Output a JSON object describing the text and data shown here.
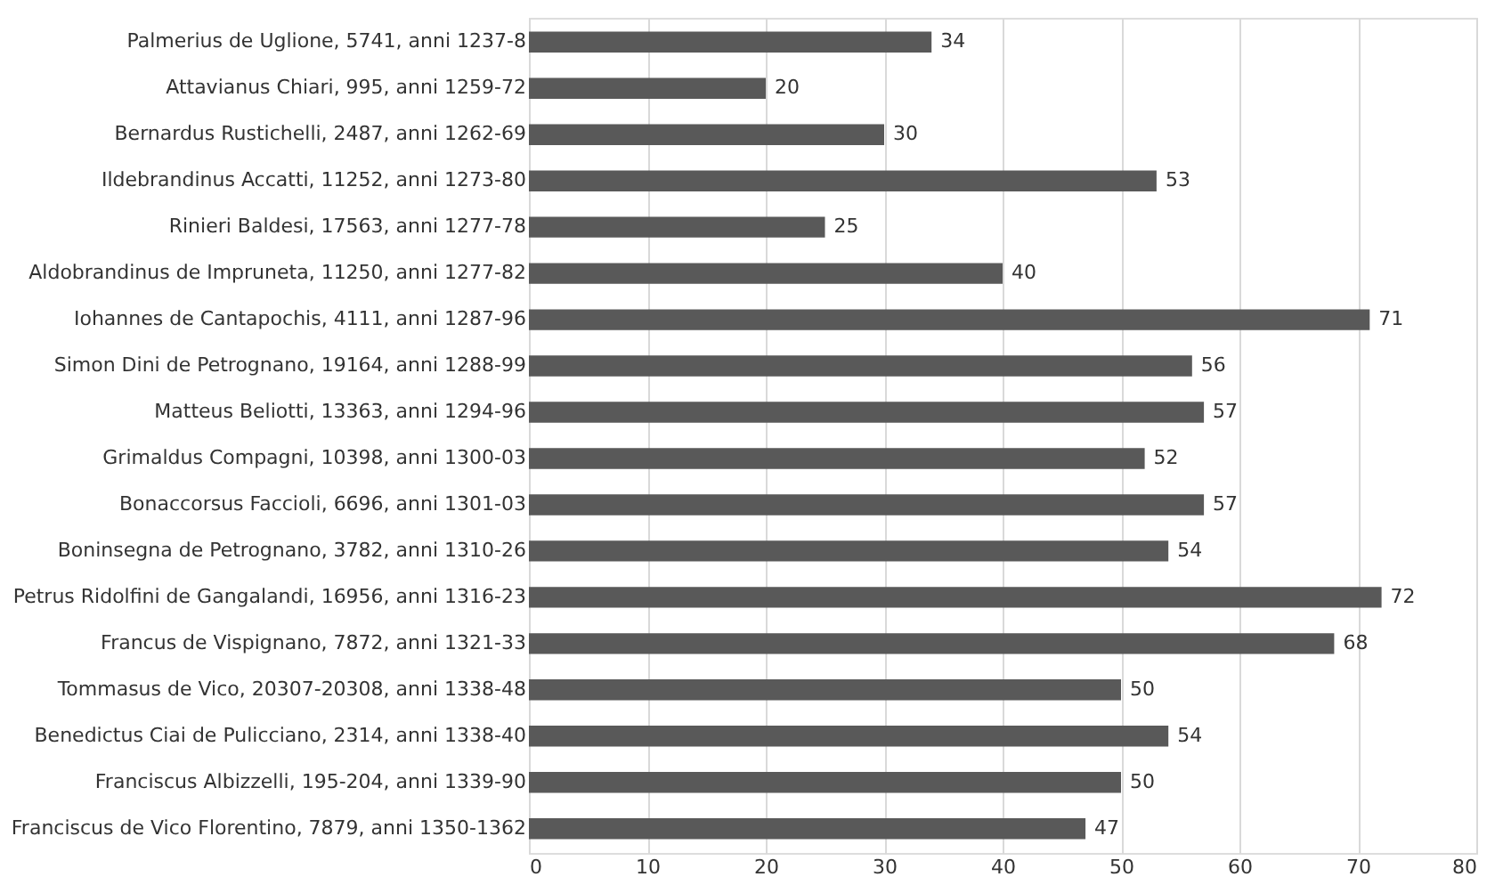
{
  "chart_data": {
    "type": "bar",
    "orientation": "horizontal",
    "categories": [
      "Palmerius de Uglione, 5741, anni 1237-8",
      "Attavianus Chiari, 995, anni 1259-72",
      "Bernardus Rustichelli, 2487, anni 1262-69",
      "Ildebrandinus Accatti, 11252, anni 1273-80",
      "Rinieri Baldesi, 17563, anni 1277-78",
      "Aldobrandinus de Impruneta, 11250, anni 1277-82",
      "Iohannes de Cantapochis, 4111, anni 1287-96",
      "Simon Dini de Petrognano, 19164, anni 1288-99",
      "Matteus Beliotti, 13363, anni 1294-96",
      "Grimaldus Compagni, 10398, anni 1300-03",
      "Bonaccorsus Faccioli, 6696, anni 1301-03",
      "Boninsegna de Petrognano, 3782, anni 1310-26",
      "Petrus Ridolfini de Gangalandi, 16956, anni 1316-23",
      "Francus de Vispignano, 7872, anni 1321-33",
      "Tommasus de Vico, 20307-20308, anni 1338-48",
      "Benedictus Ciai de Pulicciano, 2314, anni 1338-40",
      "Franciscus Albizzelli, 195-204, anni 1339-90",
      "Franciscus de Vico Florentino, 7879, anni 1350-1362"
    ],
    "values": [
      34,
      20,
      30,
      53,
      25,
      40,
      71,
      56,
      57,
      52,
      57,
      54,
      72,
      68,
      50,
      54,
      50,
      47
    ],
    "color": "#595959",
    "xlim": [
      0,
      80
    ],
    "xticks": [
      0,
      10,
      20,
      30,
      40,
      50,
      60,
      70,
      80
    ],
    "grid": "x",
    "data_labels": true
  }
}
